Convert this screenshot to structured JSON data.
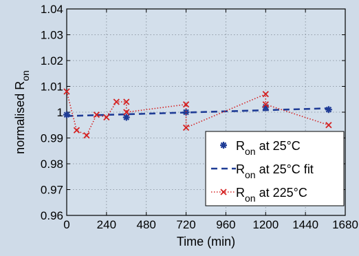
{
  "chart_data": {
    "type": "line",
    "title": "",
    "xlabel": "Time (min)",
    "ylabel": {
      "main": "normalised R",
      "sub": "on"
    },
    "xlim": [
      0,
      1680
    ],
    "ylim": [
      0.96,
      1.04
    ],
    "xticks": [
      0,
      240,
      480,
      720,
      960,
      1200,
      1440,
      1680
    ],
    "yticks": [
      0.96,
      0.97,
      0.98,
      0.99,
      1.0,
      1.01,
      1.02,
      1.03,
      1.04
    ],
    "ytick_labels": [
      "0.96",
      "0.97",
      "0.98",
      "0.99",
      "1",
      "1.01",
      "1.02",
      "1.03",
      "1.04"
    ],
    "grid": true,
    "legend_position": "bottom-right",
    "series": [
      {
        "name": "R_on at 25°C",
        "legend": {
          "main": "R",
          "sub": "on",
          "rest": " at 25°C"
        },
        "color": "#1f3c96",
        "marker": "star",
        "line": "none",
        "x": [
          0,
          360,
          720,
          1200,
          1580
        ],
        "y": [
          0.999,
          0.998,
          1.0,
          1.002,
          1.001
        ]
      },
      {
        "name": "R_on at 25°C fit",
        "legend": {
          "main": "R",
          "sub": "on",
          "rest": " at 25°C fit"
        },
        "color": "#1f3c96",
        "marker": "none",
        "line": "dashed",
        "x": [
          0,
          1580
        ],
        "y": [
          0.9985,
          1.0015
        ]
      },
      {
        "name": "R_on at 225°C",
        "legend": {
          "main": "R",
          "sub": "on",
          "rest": " at 225°C"
        },
        "color": "#d42020",
        "marker": "x",
        "line": "dotted",
        "x": [
          0,
          60,
          120,
          180,
          240,
          300,
          360,
          360,
          720,
          720,
          1200,
          1200,
          1580
        ],
        "y": [
          1.008,
          0.993,
          0.991,
          0.999,
          0.998,
          1.004,
          1.004,
          1.0,
          1.003,
          0.994,
          1.007,
          1.003,
          0.995
        ]
      }
    ]
  }
}
